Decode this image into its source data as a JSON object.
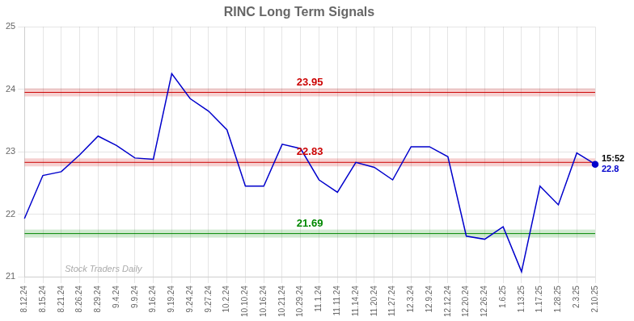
{
  "chart_data": {
    "type": "line",
    "title": "RINC Long Term Signals",
    "categories": [
      "8.12.24",
      "8.15.24",
      "8.21.24",
      "8.26.24",
      "8.29.24",
      "9.4.24",
      "9.9.24",
      "9.16.24",
      "9.19.24",
      "9.24.24",
      "9.27.24",
      "10.2.24",
      "10.10.24",
      "10.16.24",
      "10.21.24",
      "10.29.24",
      "11.1.24",
      "11.11.24",
      "11.14.24",
      "11.20.24",
      "11.27.24",
      "12.3.24",
      "12.9.24",
      "12.12.24",
      "12.20.24",
      "12.26.24",
      "1.6.25",
      "1.13.25",
      "1.17.25",
      "1.28.25",
      "2.3.25",
      "2.10.25"
    ],
    "values": [
      21.93,
      22.62,
      22.68,
      22.95,
      23.25,
      23.1,
      22.9,
      22.88,
      24.25,
      23.85,
      23.65,
      23.35,
      22.45,
      22.45,
      23.12,
      23.05,
      22.55,
      22.35,
      22.83,
      22.75,
      22.55,
      23.08,
      23.08,
      22.92,
      21.65,
      21.6,
      21.8,
      21.08,
      22.45,
      22.15,
      22.98,
      22.8
    ],
    "color": "#0000cc",
    "ylim": [
      21,
      25
    ],
    "yticks": [
      21,
      22,
      23,
      24,
      25
    ],
    "grid": true,
    "hlines": [
      {
        "value": 23.95,
        "label": "23.95",
        "color": "#cc0000"
      },
      {
        "value": 22.83,
        "label": "22.83",
        "color": "#cc0000"
      },
      {
        "value": 21.69,
        "label": "21.69",
        "color": "#008800"
      }
    ],
    "end_labels": [
      {
        "text": "15:52",
        "color": "#000000"
      },
      {
        "text": "22.8",
        "color": "#0000cc"
      }
    ],
    "watermark": {
      "text": "Stock Traders Daily",
      "color": "#aaaaaa"
    }
  }
}
